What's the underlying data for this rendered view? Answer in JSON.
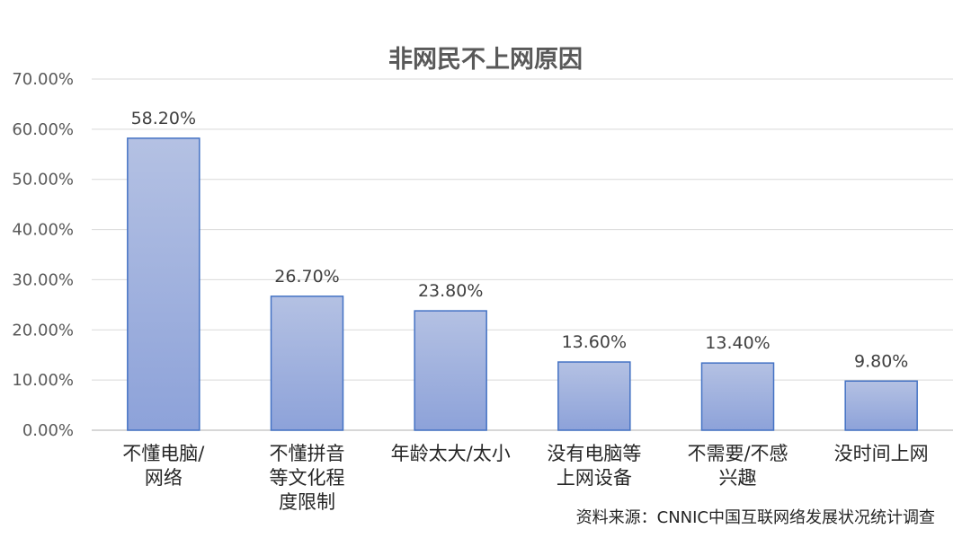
{
  "chart_data": {
    "type": "bar",
    "title": "非网民不上网原因",
    "categories": [
      [
        "不懂电脑/",
        "网络"
      ],
      [
        "不懂拼音",
        "等文化程",
        "度限制"
      ],
      [
        "年龄太大/太小"
      ],
      [
        "没有电脑等",
        "上网设备"
      ],
      [
        "不需要/不感",
        "兴趣"
      ],
      [
        "没时间上网"
      ]
    ],
    "values": [
      58.2,
      26.7,
      23.8,
      13.6,
      13.4,
      9.8
    ],
    "data_labels": [
      "58.20%",
      "26.70%",
      "23.80%",
      "13.60%",
      "13.40%",
      "9.80%"
    ],
    "ylim": [
      0,
      70
    ],
    "yticks": [
      0,
      10,
      20,
      30,
      40,
      50,
      60,
      70
    ],
    "ytick_labels": [
      "0.00%",
      "10.00%",
      "20.00%",
      "30.00%",
      "40.00%",
      "50.00%",
      "60.00%",
      "70.00%"
    ],
    "grid": true,
    "legend": "none",
    "bar_gradient": [
      "#b4c1e3",
      "#8da2d9"
    ],
    "bar_border": "#4472c4",
    "source": "资料来源：CNNIC中国互联网络发展状况统计调查"
  }
}
